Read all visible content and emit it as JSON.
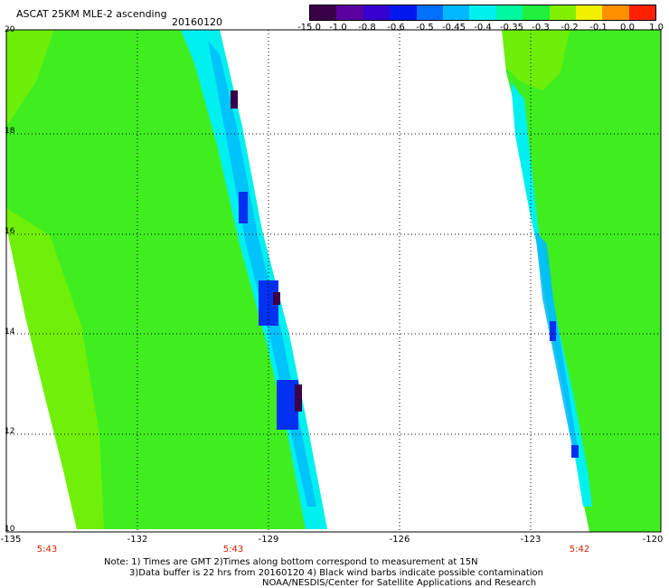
{
  "header": {
    "title": "ASCAT 25KM MLE-2 ascending",
    "date": "20160120"
  },
  "colorbar": {
    "labels": [
      "-15.0",
      "-1.0",
      "-0.8",
      "-0.6",
      "-0.5",
      "-0.45",
      "-0.4",
      "-0.35",
      "-0.3",
      "-0.2",
      "-0.1",
      "0.0",
      "1.0"
    ],
    "colors": [
      "#3a0048",
      "#5a00a0",
      "#3500d0",
      "#0018f0",
      "#0070ff",
      "#00b8ff",
      "#00f0f0",
      "#00f8a0",
      "#20f040",
      "#80f000",
      "#f0f000",
      "#ff9000",
      "#ff2000"
    ]
  },
  "map": {
    "lat_labels": [
      "20",
      "18",
      "16",
      "14",
      "12",
      "10"
    ],
    "lon_labels": [
      "-135",
      "-132",
      "-129",
      "-126",
      "-123",
      "-120"
    ],
    "time_labels": [
      "5:43",
      "5:43",
      "5:42"
    ],
    "time_color": "#cc2200",
    "data_colors": {
      "green": "#40ee20",
      "lime": "#80f000",
      "cyan": "#00f0f0",
      "sky": "#00b8ff",
      "blue": "#0030f0",
      "purple": "#3a0048"
    }
  },
  "notes": {
    "line1": "Note: 1) Times are GMT 2)Times along bottom correspond to measurement at 15N",
    "line2": "3)Data buffer is 22 hrs from 20160120 4) Black wind barbs indicate possible contamination",
    "line3": "NOAA/NESDIS/Center for Satellite Applications and Research"
  }
}
